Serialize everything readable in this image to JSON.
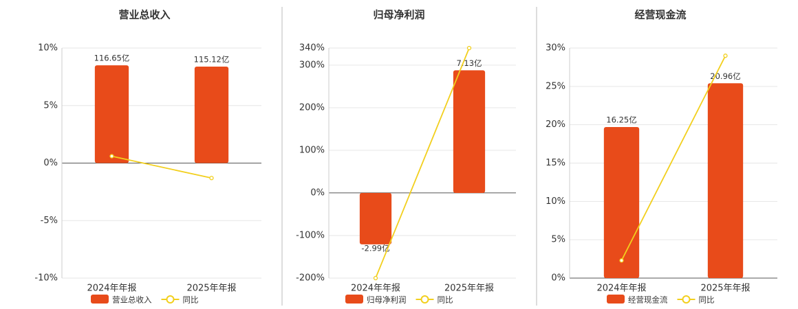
{
  "chart_data": [
    {
      "type": "bar-line",
      "title": "营业总收入",
      "categories": [
        "2024年年报",
        "2025年年报"
      ],
      "series": [
        {
          "name": "营业总收入",
          "color": "#e84b1a",
          "type": "bar",
          "axis": "y2",
          "values": [
            116.65,
            115.12
          ],
          "value_labels": [
            "116.65亿",
            "115.12亿"
          ]
        },
        {
          "name": "同比",
          "color": "#f2cf1d",
          "type": "line",
          "values": [
            0.6,
            -1.3
          ]
        }
      ],
      "ylim": [
        -10,
        10
      ],
      "yticks": [
        {
          "value": 10,
          "label": "10%"
        },
        {
          "value": 5,
          "label": "5%"
        },
        {
          "value": 0,
          "label": "0%"
        },
        {
          "value": -5,
          "label": "-5%"
        },
        {
          "value": -10,
          "label": "-10%"
        }
      ],
      "y2lim": [
        -137.2,
        137.2
      ],
      "grid": true
    },
    {
      "type": "bar-line",
      "title": "归母净利润",
      "categories": [
        "2024年年报",
        "2025年年报"
      ],
      "series": [
        {
          "name": "归母净利润",
          "color": "#e84b1a",
          "type": "bar",
          "axis": "y2",
          "values": [
            -2.99,
            7.13
          ],
          "value_labels": [
            "-2.99亿",
            "7.13亿"
          ]
        },
        {
          "name": "同比",
          "color": "#f2cf1d",
          "type": "line",
          "values": [
            -200,
            340
          ]
        }
      ],
      "ylim": [
        -200,
        340
      ],
      "yticks": [
        {
          "value": 340,
          "label": "340%"
        },
        {
          "value": 300,
          "label": "300%"
        },
        {
          "value": 200,
          "label": "200%"
        },
        {
          "value": 100,
          "label": "100%"
        },
        {
          "value": 0,
          "label": "0%"
        },
        {
          "value": -100,
          "label": "-100%"
        },
        {
          "value": -200,
          "label": "-200%"
        }
      ],
      "y2lim": [
        -4.95,
        8.42
      ],
      "grid": true
    },
    {
      "type": "bar-line",
      "title": "经营现金流",
      "categories": [
        "2024年年报",
        "2025年年报"
      ],
      "series": [
        {
          "name": "经营现金流",
          "color": "#e84b1a",
          "type": "bar",
          "axis": "y2",
          "values": [
            16.25,
            20.96
          ],
          "value_labels": [
            "16.25亿",
            "20.96亿"
          ]
        },
        {
          "name": "同比",
          "color": "#f2cf1d",
          "type": "line",
          "values": [
            2.3,
            29
          ]
        }
      ],
      "ylim": [
        0,
        30
      ],
      "yticks": [
        {
          "value": 30,
          "label": "30%"
        },
        {
          "value": 25,
          "label": "25%"
        },
        {
          "value": 20,
          "label": "20%"
        },
        {
          "value": 15,
          "label": "15%"
        },
        {
          "value": 10,
          "label": "10%"
        },
        {
          "value": 5,
          "label": "5%"
        },
        {
          "value": 0,
          "label": "0%"
        }
      ],
      "y2lim": [
        0,
        24.75
      ],
      "grid": true
    }
  ]
}
